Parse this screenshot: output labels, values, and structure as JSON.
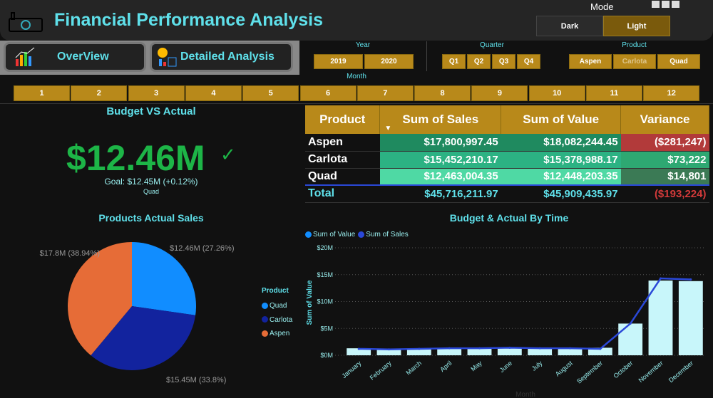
{
  "header": {
    "title": "Financial Performance Analysis",
    "logo_icon": "money-factory-icon",
    "mode_label": "Mode",
    "mode_options": [
      "Dark",
      "Light"
    ],
    "mode_selected": "Light"
  },
  "nav": {
    "overview": "OverView",
    "detailed": "Detailed Analysis"
  },
  "slicers": {
    "year": {
      "label": "Year",
      "options": [
        "2019",
        "2020"
      ]
    },
    "quarter": {
      "label": "Quarter",
      "options": [
        "Q1",
        "Q2",
        "Q3",
        "Q4"
      ]
    },
    "product": {
      "label": "Product",
      "options": [
        "Aspen",
        "Carlota",
        "Quad"
      ],
      "dimmed": "Carlota"
    },
    "month": {
      "label": "Month",
      "options": [
        "1",
        "2",
        "3",
        "4",
        "5",
        "6",
        "7",
        "8",
        "9",
        "10",
        "11",
        "12"
      ]
    }
  },
  "kpi": {
    "title": "Budget VS Actual",
    "value": "$12.46M",
    "goal": "Goal: $12.45M (+0.12%)",
    "filter": "Quad",
    "status_icon": "check-icon",
    "color": "#1db547"
  },
  "table": {
    "headers": [
      "Product",
      "Sum of Sales",
      "Sum of Value",
      "Variance"
    ],
    "rows": [
      {
        "product": "Aspen",
        "sales": "$17,800,997.45",
        "value": "$18,082,244.45",
        "variance": "($281,247)"
      },
      {
        "product": "Carlota",
        "sales": "$15,452,210.17",
        "value": "$15,378,988.17",
        "variance": "$73,222"
      },
      {
        "product": "Quad",
        "sales": "$12,463,004.35",
        "value": "$12,448,203.35",
        "variance": "$14,801"
      }
    ],
    "total": {
      "label": "Total",
      "sales": "$45,716,211.97",
      "value": "$45,909,435.97",
      "variance": "($193,224)"
    }
  },
  "chart_data": [
    {
      "type": "pie",
      "title": "Products Actual Sales",
      "legend_title": "Product",
      "legend_position": "right",
      "slices": [
        {
          "name": "Quad",
          "value": 12.46,
          "label": "$12.46M (27.26%)",
          "color": "#118dff"
        },
        {
          "name": "Carlota",
          "value": 15.45,
          "label": "$15.45M (33.8%)",
          "color": "#12239e"
        },
        {
          "name": "Aspen",
          "value": 17.8,
          "label": "$17.8M (38.94%)",
          "color": "#e66c37"
        }
      ]
    },
    {
      "type": "bar",
      "title": "Budget & Actual By Time",
      "xlabel": "Month",
      "ylabel": "Sum of Value",
      "ylim": [
        0,
        20
      ],
      "yticks": [
        "$0M",
        "$5M",
        "$10M",
        "$15M",
        "$20M"
      ],
      "grid": true,
      "legend_position": "top-left",
      "categories": [
        "January",
        "February",
        "March",
        "April",
        "May",
        "June",
        "July",
        "August",
        "September",
        "October",
        "November",
        "December"
      ],
      "series": [
        {
          "name": "Sum of Value",
          "kind": "bar",
          "color": "#c8f6fa",
          "values": [
            1.3,
            1.1,
            1.15,
            1.2,
            1.3,
            1.5,
            1.25,
            1.2,
            1.4,
            5.9,
            13.9,
            13.8
          ]
        },
        {
          "name": "Sum of Sales",
          "kind": "line",
          "color": "#2a48d8",
          "values": [
            1.2,
            1.1,
            1.2,
            1.3,
            1.3,
            1.4,
            1.3,
            1.3,
            1.2,
            5.9,
            14.3,
            14.1
          ]
        }
      ]
    }
  ]
}
